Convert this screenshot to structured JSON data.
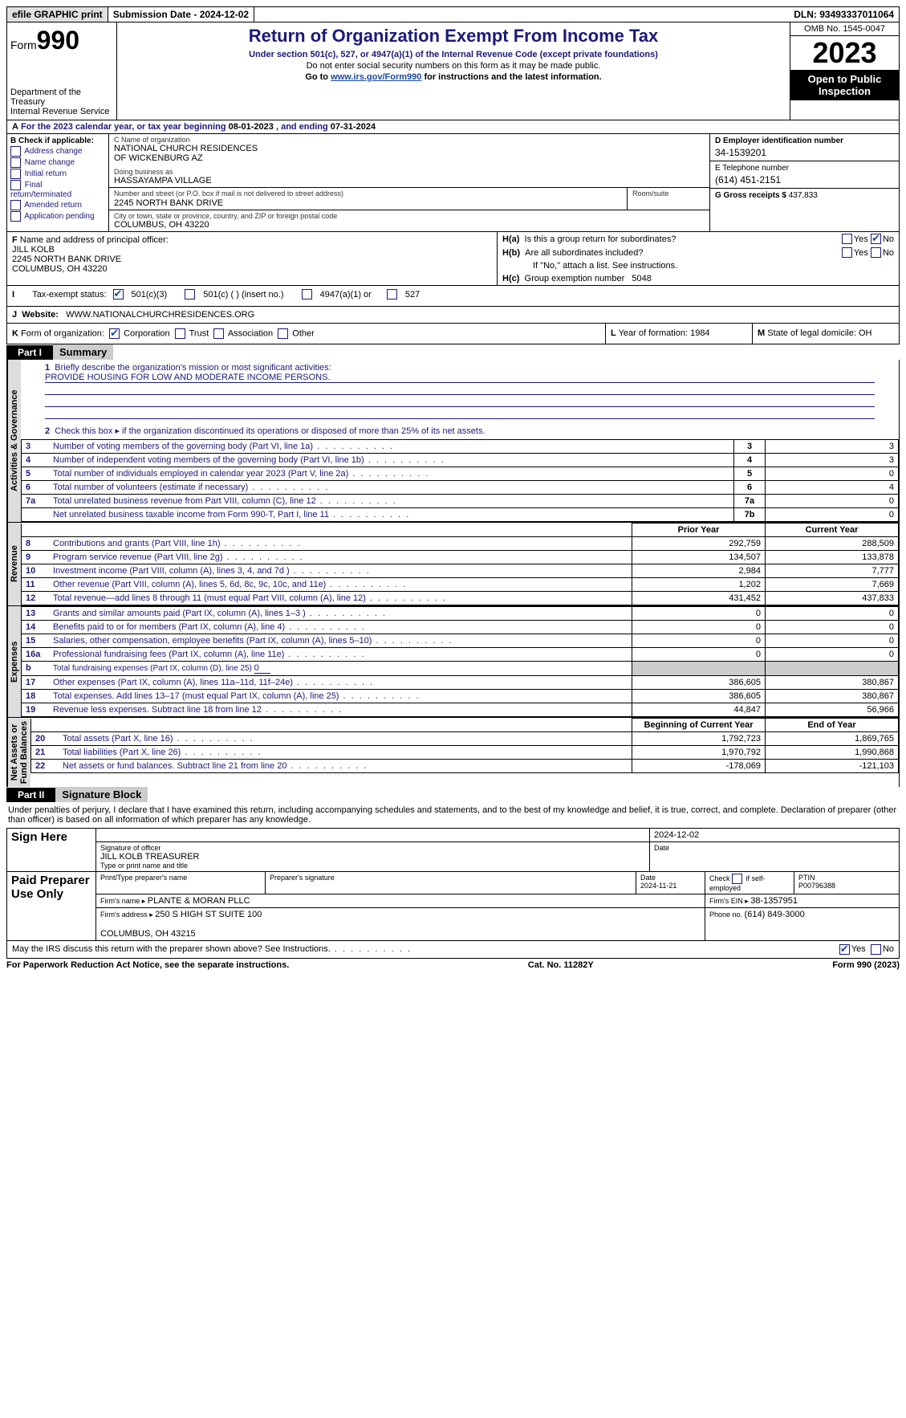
{
  "topbar": {
    "efile": "efile GRAPHIC print",
    "sub_label": "Submission Date - 2024-12-02",
    "dln": "DLN: 93493337011064"
  },
  "header": {
    "form_word": "Form",
    "form_num": "990",
    "dept": "Department of the Treasury\nInternal Revenue Service",
    "title": "Return of Organization Exempt From Income Tax",
    "sub": "Under section 501(c), 527, or 4947(a)(1) of the Internal Revenue Code (except private foundations)",
    "note": "Do not enter social security numbers on this form as it may be made public.",
    "goto_pre": "Go to ",
    "goto_link": "www.irs.gov/Form990",
    "goto_post": " for instructions and the latest information.",
    "omb": "OMB No. 1545-0047",
    "year": "2023",
    "open": "Open to Public Inspection"
  },
  "A": {
    "text_pre": "For the 2023 calendar year, or tax year beginning ",
    "begin": "08-01-2023",
    "text_mid": " , and ending ",
    "end": "07-31-2024"
  },
  "B": {
    "label": "B Check if applicable:",
    "opts": [
      "Address change",
      "Name change",
      "Initial return",
      "Final return/terminated",
      "Amended return",
      "Application pending"
    ]
  },
  "C": {
    "name_label": "C Name of organization",
    "name": "NATIONAL CHURCH RESIDENCES\nOF WICKENBURG AZ",
    "dba_label": "Doing business as",
    "dba": "HASSAYAMPA VILLAGE",
    "street_label": "Number and street (or P.O. box if mail is not delivered to street address)",
    "room_label": "Room/suite",
    "street": "2245 NORTH BANK DRIVE",
    "city_label": "City or town, state or province, country, and ZIP or foreign postal code",
    "city": "COLUMBUS, OH  43220"
  },
  "D": {
    "label": "D Employer identification number",
    "val": "34-1539201"
  },
  "E": {
    "label": "E Telephone number",
    "val": "(614) 451-2151"
  },
  "G": {
    "label": "G Gross receipts $ ",
    "val": "437,833"
  },
  "F": {
    "label": "Name and address of principal officer:",
    "name": "JILL KOLB",
    "street": "2245 NORTH BANK DRIVE",
    "city": "COLUMBUS, OH  43220"
  },
  "H": {
    "a": "Is this a group return for subordinates?",
    "a_yes": "Yes",
    "a_no": "No",
    "b": "Are all subordinates included?",
    "b_note": "If \"No,\" attach a list. See instructions.",
    "c_label": "Group exemption number",
    "c_val": "5048"
  },
  "I": {
    "label": "Tax-exempt status:",
    "o1": "501(c)(3)",
    "o2": "501(c) (  ) (insert no.)",
    "o3": "4947(a)(1) or",
    "o4": "527"
  },
  "J": {
    "label": "Website:",
    "val": "WWW.NATIONALCHURCHRESIDENCES.ORG"
  },
  "K": {
    "label": "Form of organization:",
    "o1": "Corporation",
    "o2": "Trust",
    "o3": "Association",
    "o4": "Other"
  },
  "L": {
    "label": "Year of formation: ",
    "val": "1984"
  },
  "M": {
    "label": "State of legal domicile: ",
    "val": "OH"
  },
  "partI": {
    "hdr": "Part I",
    "title": "Summary"
  },
  "summary": {
    "q1_label": "Briefly describe the organization's mission or most significant activities:",
    "q1": "PROVIDE HOUSING FOR LOW AND MODERATE INCOME PERSONS.",
    "q2": "Check this box ▸       if the organization discontinued its operations or disposed of more than 25% of its net assets.",
    "governance": [
      {
        "n": "3",
        "d": "Number of voting members of the governing body (Part VI, line 1a)",
        "ln": "3",
        "v": "3"
      },
      {
        "n": "4",
        "d": "Number of independent voting members of the governing body (Part VI, line 1b)",
        "ln": "4",
        "v": "3"
      },
      {
        "n": "5",
        "d": "Total number of individuals employed in calendar year 2023 (Part V, line 2a)",
        "ln": "5",
        "v": "0"
      },
      {
        "n": "6",
        "d": "Total number of volunteers (estimate if necessary)",
        "ln": "6",
        "v": "4"
      },
      {
        "n": "7a",
        "d": "Total unrelated business revenue from Part VIII, column (C), line 12",
        "ln": "7a",
        "v": "0"
      },
      {
        "n": "",
        "d": "Net unrelated business taxable income from Form 990-T, Part I, line 11",
        "ln": "7b",
        "v": "0"
      }
    ],
    "prior_hdr": "Prior Year",
    "curr_hdr": "Current Year",
    "revenue": [
      {
        "n": "8",
        "d": "Contributions and grants (Part VIII, line 1h)",
        "p": "292,759",
        "c": "288,509"
      },
      {
        "n": "9",
        "d": "Program service revenue (Part VIII, line 2g)",
        "p": "134,507",
        "c": "133,878"
      },
      {
        "n": "10",
        "d": "Investment income (Part VIII, column (A), lines 3, 4, and 7d )",
        "p": "2,984",
        "c": "7,777"
      },
      {
        "n": "11",
        "d": "Other revenue (Part VIII, column (A), lines 5, 6d, 8c, 9c, 10c, and 11e)",
        "p": "1,202",
        "c": "7,669"
      },
      {
        "n": "12",
        "d": "Total revenue—add lines 8 through 11 (must equal Part VIII, column (A), line 12)",
        "p": "431,452",
        "c": "437,833"
      }
    ],
    "expenses": [
      {
        "n": "13",
        "d": "Grants and similar amounts paid (Part IX, column (A), lines 1–3 )",
        "p": "0",
        "c": "0"
      },
      {
        "n": "14",
        "d": "Benefits paid to or for members (Part IX, column (A), line 4)",
        "p": "0",
        "c": "0"
      },
      {
        "n": "15",
        "d": "Salaries, other compensation, employee benefits (Part IX, column (A), lines 5–10)",
        "p": "0",
        "c": "0"
      },
      {
        "n": "16a",
        "d": "Professional fundraising fees (Part IX, column (A), line 11e)",
        "p": "0",
        "c": "0"
      }
    ],
    "exp_b": {
      "n": "b",
      "d": "Total fundraising expenses (Part IX, column (D), line 25) ",
      "v": "0"
    },
    "expenses2": [
      {
        "n": "17",
        "d": "Other expenses (Part IX, column (A), lines 11a–11d, 11f–24e)",
        "p": "386,605",
        "c": "380,867"
      },
      {
        "n": "18",
        "d": "Total expenses. Add lines 13–17 (must equal Part IX, column (A), line 25)",
        "p": "386,605",
        "c": "380,867"
      },
      {
        "n": "19",
        "d": "Revenue less expenses. Subtract line 18 from line 12",
        "p": "44,847",
        "c": "56,966"
      }
    ],
    "na_begin": "Beginning of Current Year",
    "na_end": "End of Year",
    "netassets": [
      {
        "n": "20",
        "d": "Total assets (Part X, line 16)",
        "p": "1,792,723",
        "c": "1,869,765"
      },
      {
        "n": "21",
        "d": "Total liabilities (Part X, line 26)",
        "p": "1,970,792",
        "c": "1,990,868"
      },
      {
        "n": "22",
        "d": "Net assets or fund balances. Subtract line 21 from line 20",
        "p": "-178,069",
        "c": "-121,103"
      }
    ],
    "vlab_gov": "Activities & Governance",
    "vlab_rev": "Revenue",
    "vlab_exp": "Expenses",
    "vlab_na": "Net Assets or\nFund Balances"
  },
  "partII": {
    "hdr": "Part II",
    "title": "Signature Block"
  },
  "sig": {
    "declare": "Under penalties of perjury, I declare that I have examined this return, including accompanying schedules and statements, and to the best of my knowledge and belief, it is true, correct, and complete. Declaration of preparer (other than officer) is based on all information of which preparer has any knowledge.",
    "sign_here": "Sign Here",
    "date1": "2024-12-02",
    "sig_officer_lab": "Signature of officer",
    "sig_date_lab": "Date",
    "officer": "JILL KOLB  TREASURER",
    "officer_lab": "Type or print name and title",
    "paid": "Paid Preparer Use Only",
    "prep_name_lab": "Print/Type preparer's name",
    "prep_sig_lab": "Preparer's signature",
    "prep_date_lab": "Date",
    "prep_date": "2024-11-21",
    "self_emp": "Check        if self-employed",
    "ptin_lab": "PTIN",
    "ptin": "P00796388",
    "firm_name_lab": "Firm's name  ▸  ",
    "firm_name": "PLANTE & MORAN PLLC",
    "firm_ein_lab": "Firm's EIN ▸ ",
    "firm_ein": "38-1357951",
    "firm_addr_lab": "Firm's address ▸ ",
    "firm_addr": "250 S HIGH ST SUITE 100\n\nCOLUMBUS, OH  43215",
    "phone_lab": "Phone no. ",
    "phone": "(614) 849-3000",
    "discuss": "May the IRS discuss this return with the preparer shown above? See Instructions.",
    "yes": "Yes",
    "no": "No"
  },
  "footer": {
    "left": "For Paperwork Reduction Act Notice, see the separate instructions.",
    "mid": "Cat. No. 11282Y",
    "right_pre": "Form ",
    "right_b": "990",
    "right_post": " (2023)"
  }
}
